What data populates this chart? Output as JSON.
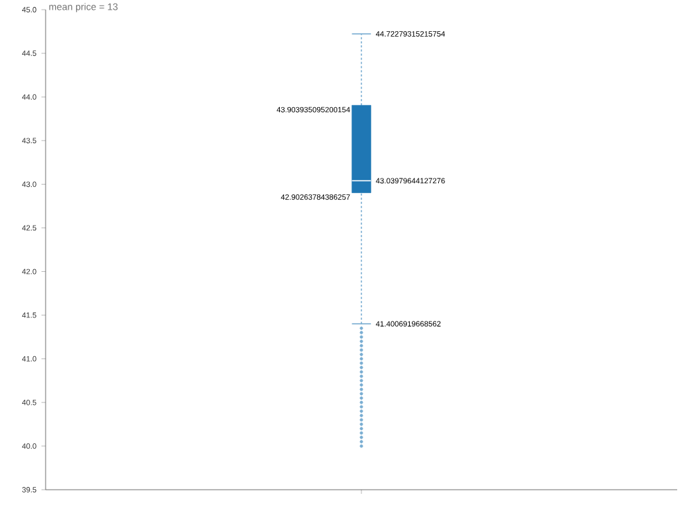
{
  "chart_data": {
    "type": "box",
    "title": "mean price = 13",
    "categories": [
      null
    ],
    "color": "#1f77b4",
    "boxes": [
      {
        "low": 41.4006919668562,
        "q1": 42.90263784386257,
        "median": 43.03979644127276,
        "q3": 43.903935095200154,
        "high": 44.72279315215754,
        "outliers": [
          41.35,
          41.3,
          41.25,
          41.2,
          41.15,
          41.1,
          41.05,
          41.0,
          40.95,
          40.9,
          40.85,
          40.8,
          40.75,
          40.7,
          40.65,
          40.6,
          40.55,
          40.5,
          40.45,
          40.4,
          40.35,
          40.3,
          40.25,
          40.2,
          40.15,
          40.1,
          40.05,
          40.0
        ]
      }
    ],
    "annotations": [
      "44.72279315215754",
      "43.903935095200154",
      "43.03979644127276",
      "42.90263784386257",
      "41.4006919668562"
    ],
    "ylim": [
      39.5,
      45.0
    ],
    "yticks": [
      {
        "value": 39.5,
        "label": "39.5"
      },
      {
        "value": 40.0,
        "label": "40.0"
      },
      {
        "value": 40.5,
        "label": "40.5"
      },
      {
        "value": 41.0,
        "label": "41.0"
      },
      {
        "value": 41.5,
        "label": "41.5"
      },
      {
        "value": 42.0,
        "label": "42.0"
      },
      {
        "value": 42.5,
        "label": "42.5"
      },
      {
        "value": 43.0,
        "label": "43.0"
      },
      {
        "value": 43.5,
        "label": "43.5"
      },
      {
        "value": 44.0,
        "label": "44.0"
      },
      {
        "value": 44.5,
        "label": "44.5"
      },
      {
        "value": 45.0,
        "label": "45.0"
      }
    ],
    "tick_labels": "y"
  }
}
